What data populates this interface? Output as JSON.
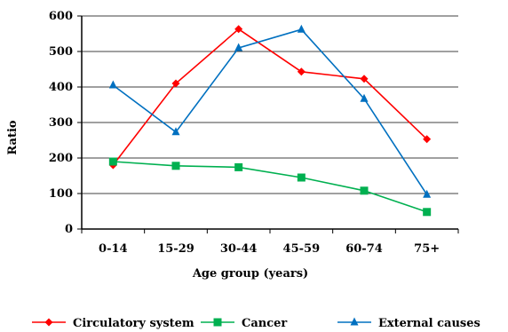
{
  "chart_data": {
    "type": "line",
    "title": "",
    "xlabel": "Age group (years)",
    "ylabel": "Ratio",
    "ylim": [
      0,
      600
    ],
    "yticks": [
      0,
      100,
      200,
      300,
      400,
      500,
      600
    ],
    "grid": true,
    "legend_position": "bottom",
    "categories": [
      "0-14",
      "15-29",
      "30-44",
      "45-59",
      "60-74",
      "75+"
    ],
    "series": [
      {
        "name": "Circulatory system",
        "color": "#ff0000",
        "marker": "diamond",
        "values": [
          180,
          410,
          563,
          443,
          423,
          253
        ]
      },
      {
        "name": "Cancer",
        "color": "#00b050",
        "marker": "square",
        "values": [
          190,
          178,
          174,
          145,
          108,
          48
        ]
      },
      {
        "name": "External causes",
        "color": "#0070c0",
        "marker": "triangle",
        "values": [
          405,
          273,
          510,
          562,
          367,
          97
        ]
      }
    ]
  }
}
